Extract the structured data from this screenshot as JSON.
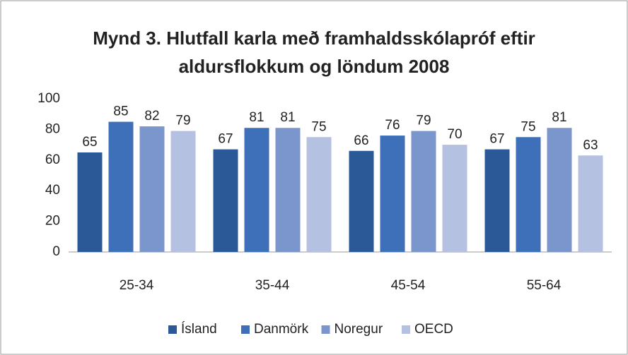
{
  "chart_data": {
    "type": "bar",
    "title": "Mynd 3. Hlutfall karla með framhaldsskólapróf eftir aldursflokkum og löndum 2008",
    "categories": [
      "25-34",
      "35-44",
      "45-54",
      "55-64"
    ],
    "series": [
      {
        "name": "Ísland",
        "color": "#2b5896",
        "values": [
          65,
          67,
          66,
          67
        ]
      },
      {
        "name": "Danmörk",
        "color": "#3e70b9",
        "values": [
          85,
          81,
          76,
          75
        ]
      },
      {
        "name": "Noregur",
        "color": "#7a96cd",
        "values": [
          82,
          81,
          79,
          81
        ]
      },
      {
        "name": "OECD",
        "color": "#b5c1e0",
        "values": [
          79,
          75,
          70,
          63
        ]
      }
    ],
    "ylim": [
      0,
      100
    ],
    "yticks": [
      0,
      20,
      40,
      60,
      80,
      100
    ],
    "grid": false,
    "legend": "bottom"
  }
}
